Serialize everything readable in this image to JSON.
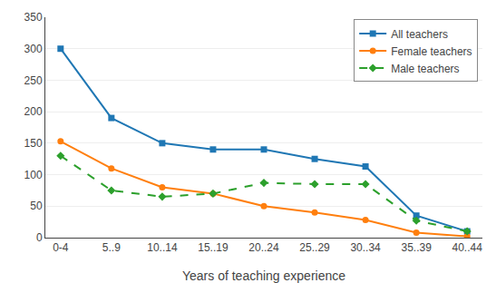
{
  "chart_data": {
    "type": "line",
    "x_label": "Years of teaching experience",
    "categories": [
      "0-4",
      "5..9",
      "10..14",
      "15..19",
      "20..24",
      "25..29",
      "30..34",
      "35..39",
      "40..44"
    ],
    "series": [
      {
        "name": "All teachers",
        "values": [
          300,
          190,
          150,
          140,
          140,
          125,
          113,
          35,
          10
        ],
        "marker": "square",
        "line_style": "solid"
      },
      {
        "name": "Female teachers",
        "values": [
          153,
          110,
          80,
          70,
          50,
          40,
          28,
          8,
          2
        ],
        "marker": "circle",
        "line_style": "solid"
      },
      {
        "name": "Male teachers",
        "values": [
          130,
          75,
          65,
          70,
          87,
          85,
          85,
          27,
          10
        ],
        "marker": "diamond",
        "line_style": "dashed"
      }
    ],
    "ylim": [
      0,
      350
    ],
    "yticks": [
      0,
      50,
      100,
      150,
      200,
      250,
      300,
      350
    ],
    "grid": true,
    "legend": "upper right"
  }
}
